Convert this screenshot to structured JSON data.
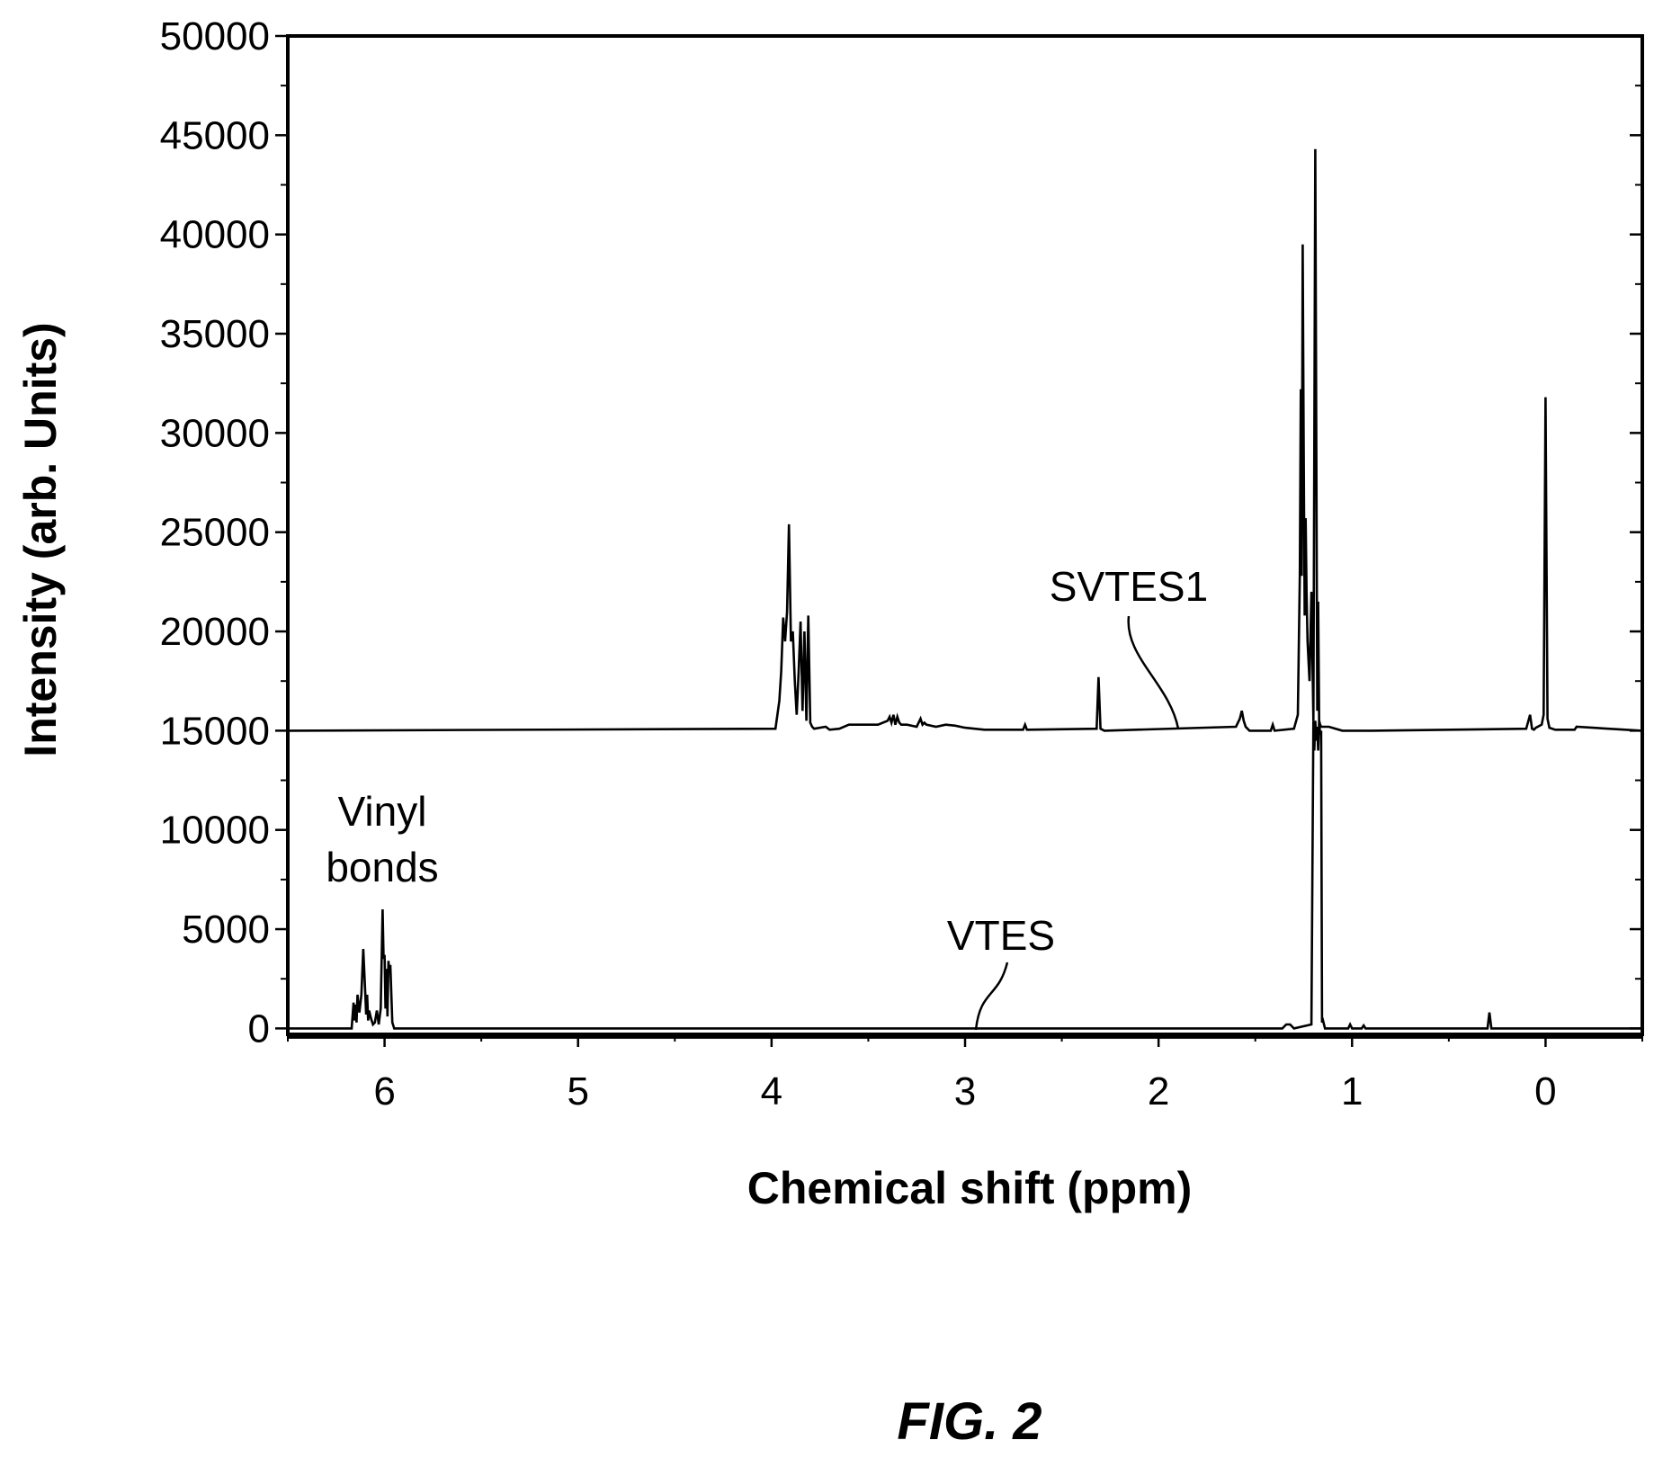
{
  "figure": {
    "caption": "FIG. 2"
  },
  "chart_data": {
    "type": "line",
    "title": "",
    "xlabel": "Chemical shift (ppm)",
    "ylabel": "Intensity (arb. Units)",
    "xlim": [
      6.5,
      -0.5
    ],
    "ylim": [
      -300,
      50000
    ],
    "x_reversed": true,
    "grid": false,
    "xticks": [
      6,
      5,
      4,
      3,
      2,
      1,
      0
    ],
    "yticks": [
      0,
      5000,
      10000,
      15000,
      20000,
      25000,
      30000,
      35000,
      40000,
      45000,
      50000
    ],
    "annotations": [
      {
        "text": "SVTES1",
        "x": 1.9,
        "y": 15000
      },
      {
        "text": "VTES",
        "x": 2.95,
        "y": 0
      },
      {
        "text": "Vinyl bonds",
        "lines": [
          "Vinyl",
          "bonds"
        ],
        "x": 6.0,
        "y": 6000
      }
    ],
    "series": [
      {
        "name": "SVTES1",
        "baseline": 15000,
        "x": [
          6.5,
          3.98,
          3.96,
          3.95,
          3.94,
          3.93,
          3.92,
          3.91,
          3.9,
          3.89,
          3.88,
          3.87,
          3.86,
          3.85,
          3.84,
          3.83,
          3.82,
          3.81,
          3.8,
          3.79,
          3.78,
          3.72,
          3.7,
          3.65,
          3.6,
          3.45,
          3.4,
          3.39,
          3.38,
          3.37,
          3.36,
          3.35,
          3.34,
          3.33,
          3.3,
          3.25,
          3.23,
          3.22,
          3.21,
          3.2,
          3.15,
          3.1,
          3.05,
          3.0,
          2.95,
          2.9,
          2.7,
          2.69,
          2.68,
          2.32,
          2.31,
          2.3,
          2.29,
          2.28,
          1.6,
          1.58,
          1.57,
          1.56,
          1.55,
          1.53,
          1.42,
          1.41,
          1.4,
          1.3,
          1.28,
          1.27,
          1.265,
          1.26,
          1.255,
          1.25,
          1.245,
          1.24,
          1.235,
          1.23,
          1.22,
          1.21,
          1.2,
          1.19,
          1.18,
          1.175,
          1.17,
          1.165,
          1.16,
          1.15,
          1.12,
          1.05,
          1.02,
          0.9,
          0.1,
          0.08,
          0.07,
          0.06,
          0.05,
          0.02,
          0.01,
          0.0,
          -0.01,
          -0.02,
          -0.05,
          -0.15,
          -0.16,
          -0.5
        ],
        "y": [
          15000,
          15100,
          16500,
          18000,
          20700,
          19500,
          21000,
          25400,
          19500,
          20000,
          17500,
          15800,
          18000,
          20500,
          16000,
          20000,
          15500,
          20800,
          15400,
          15200,
          15100,
          15200,
          15050,
          15100,
          15300,
          15300,
          15500,
          15700,
          15400,
          15800,
          15300,
          15700,
          15400,
          15300,
          15300,
          15200,
          15600,
          15300,
          15400,
          15300,
          15200,
          15300,
          15250,
          15150,
          15100,
          15050,
          15050,
          15300,
          15050,
          15100,
          17700,
          15100,
          15050,
          15000,
          15200,
          15600,
          16000,
          15500,
          15200,
          15000,
          15000,
          15300,
          15000,
          15100,
          15800,
          22800,
          32200,
          22800,
          39500,
          29300,
          20800,
          25700,
          22000,
          19500,
          17500,
          22000,
          15500,
          44300,
          16000,
          21500,
          15500,
          15300,
          15200,
          15200,
          15200,
          15000,
          15000,
          15000,
          15100,
          15800,
          15100,
          15050,
          15150,
          15300,
          15800,
          31800,
          15600,
          15150,
          15050,
          15050,
          15200,
          15000
        ]
      },
      {
        "name": "VTES",
        "baseline": 0,
        "x": [
          6.5,
          6.17,
          6.16,
          6.155,
          6.15,
          6.145,
          6.14,
          6.13,
          6.12,
          6.11,
          6.1,
          6.095,
          6.09,
          6.085,
          6.08,
          6.07,
          6.06,
          6.05,
          6.04,
          6.03,
          6.02,
          6.01,
          6.005,
          6.0,
          5.995,
          5.99,
          5.985,
          5.98,
          5.975,
          5.97,
          5.96,
          5.95,
          1.36,
          1.34,
          1.32,
          1.3,
          1.21,
          1.2,
          1.195,
          1.19,
          1.185,
          1.18,
          1.175,
          1.17,
          1.165,
          1.16,
          1.155,
          1.15,
          1.14,
          1.02,
          1.01,
          1.0,
          0.95,
          0.94,
          0.93,
          0.3,
          0.29,
          0.28,
          -0.5
        ],
        "y": [
          0,
          0,
          1300,
          400,
          1200,
          300,
          1700,
          800,
          1700,
          4000,
          1800,
          700,
          1700,
          400,
          900,
          500,
          200,
          300,
          900,
          200,
          1000,
          6000,
          3500,
          3700,
          1000,
          3000,
          600,
          3400,
          2800,
          3200,
          300,
          0,
          0,
          200,
          200,
          0,
          200,
          15500,
          14000,
          15500,
          14500,
          15200,
          14000,
          15500,
          14800,
          15000,
          300,
          400,
          0,
          0,
          200,
          0,
          0,
          150,
          0,
          0,
          800,
          0,
          0
        ]
      }
    ]
  }
}
